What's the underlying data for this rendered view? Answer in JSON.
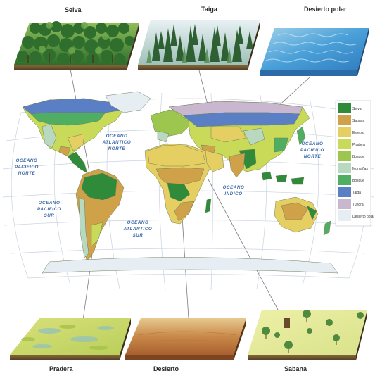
{
  "panels": {
    "selva": "Selva",
    "taiga": "Taiga",
    "desierto_polar": "Desierto polar",
    "pradera": "Pradera",
    "desierto": "Desierto",
    "sabana": "Sabana"
  },
  "oceans": {
    "atlantico_norte_1": "OCEANO",
    "atlantico_norte_2": "ATLANTICO",
    "atlantico_norte_3": "NORTE",
    "pacifico_norte_w_1": "OCEANO",
    "pacifico_norte_w_2": "PACIFICO",
    "pacifico_norte_w_3": "NORTE",
    "pacifico_norte_e_1": "OCEANO",
    "pacifico_norte_e_2": "PACIFICO",
    "pacifico_norte_e_3": "NORTE",
    "indico_1": "OCEANO",
    "indico_2": "INDICO",
    "pacifico_sur_1": "OCEANO",
    "pacifico_sur_2": "PACIFICO",
    "pacifico_sur_3": "SUR",
    "atlantico_sur_1": "OCEANO",
    "atlantico_sur_2": "ATLANTICO",
    "atlantico_sur_3": "SUR"
  },
  "legend": [
    {
      "label": "Selva",
      "color": "#2f8a3a"
    },
    {
      "label": "Sabana",
      "color": "#cfa24a"
    },
    {
      "label": "Estepa",
      "color": "#e6cf62"
    },
    {
      "label": "Pradera",
      "color": "#c8da58"
    },
    {
      "label": "Bosque",
      "color": "#9cc64e"
    },
    {
      "label": "Montañas",
      "color": "#b8d9c0"
    },
    {
      "label": "Bosque",
      "color": "#4fae62"
    },
    {
      "label": "Taiga",
      "color": "#5a7fc4"
    },
    {
      "label": "Tundra",
      "color": "#c9b6cf"
    },
    {
      "label": "Desierto polar",
      "color": "#e6eef4"
    }
  ]
}
